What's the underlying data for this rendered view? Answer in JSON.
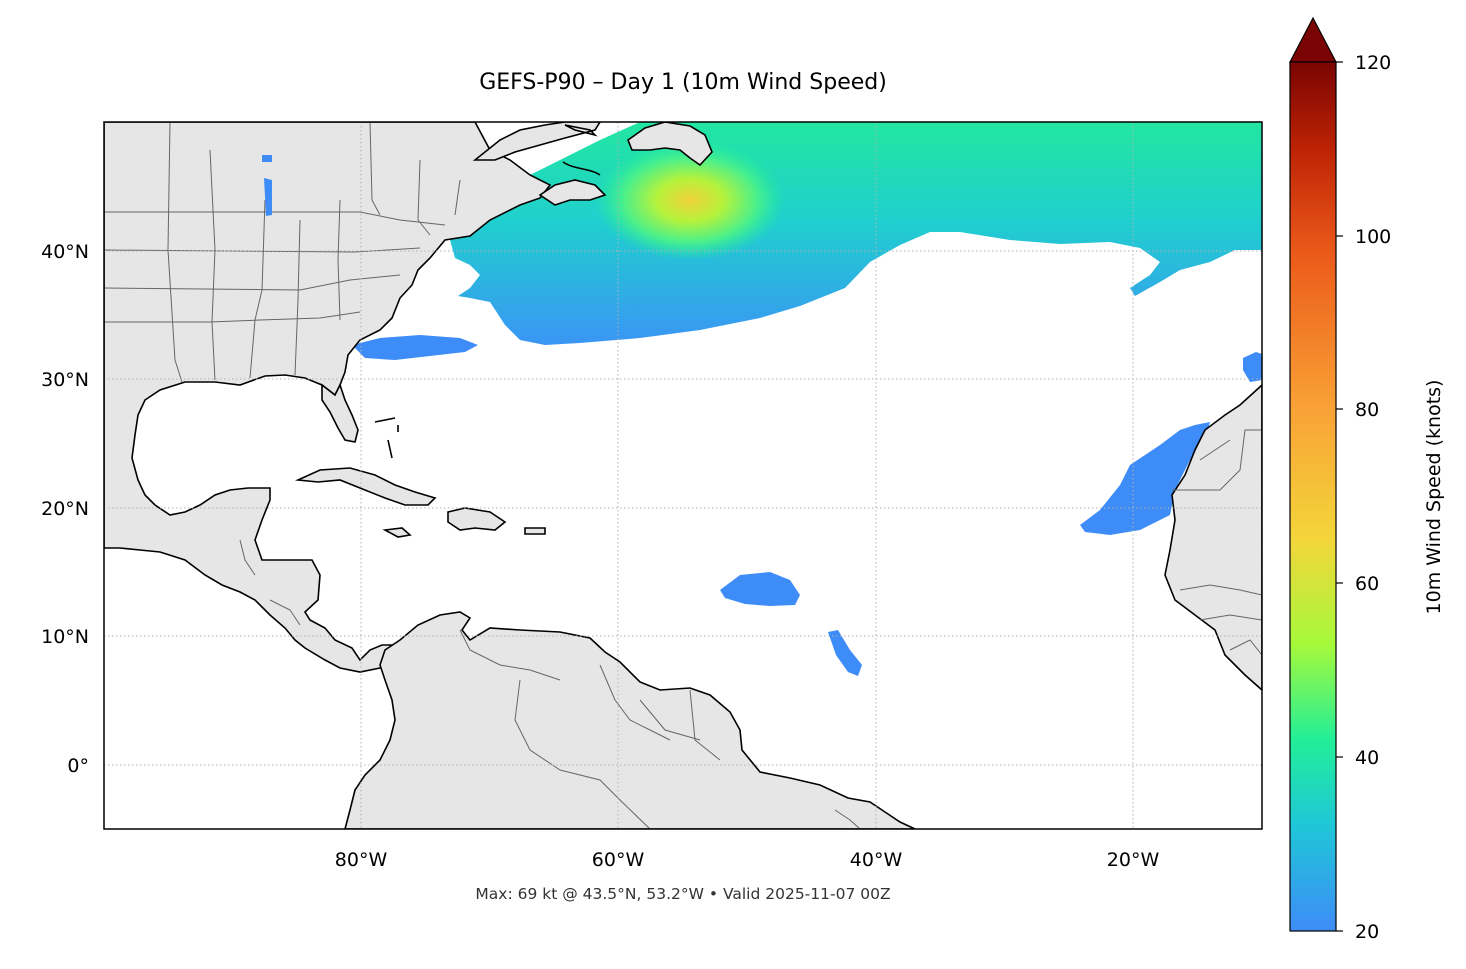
{
  "title": "GEFS-P90 – Day 1 (10m Wind Speed)",
  "caption": "Max: 69 kt @ 43.5°N, 53.2°W • Valid 2025-11-07 00Z",
  "map": {
    "lon_range": [
      -100,
      -10
    ],
    "lat_range": [
      -5,
      50
    ],
    "lon_ticks": [
      {
        "value": -80,
        "label": "80°W"
      },
      {
        "value": -60,
        "label": "60°W"
      },
      {
        "value": -40,
        "label": "40°W"
      },
      {
        "value": -20,
        "label": "20°W"
      }
    ],
    "lat_ticks": [
      {
        "value": 40,
        "label": "40°N"
      },
      {
        "value": 30,
        "label": "30°N"
      },
      {
        "value": 20,
        "label": "20°N"
      },
      {
        "value": 10,
        "label": "10°N"
      },
      {
        "value": 0,
        "label": "0°"
      }
    ],
    "gridlines": "dotted",
    "land_color": "#e6e6e6",
    "coast_color": "#000000",
    "border_color": "#666666"
  },
  "colorbar": {
    "label": "10m Wind Speed (knots)",
    "min": 20,
    "max": 120,
    "extend": "max",
    "ticks": [
      {
        "value": 20,
        "label": "20"
      },
      {
        "value": 40,
        "label": "40"
      },
      {
        "value": 60,
        "label": "60"
      },
      {
        "value": 80,
        "label": "80"
      },
      {
        "value": 100,
        "label": "100"
      },
      {
        "value": 120,
        "label": "120"
      }
    ],
    "colors": [
      "#3e8cf7",
      "#1fc6d8",
      "#22ef98",
      "#a6f93a",
      "#f3d63a",
      "#f9a236",
      "#ec5a1a",
      "#bd2305",
      "#7a0403"
    ]
  },
  "max_point": {
    "value_kt": 69,
    "lat": 43.5,
    "lon": -53.2
  }
}
